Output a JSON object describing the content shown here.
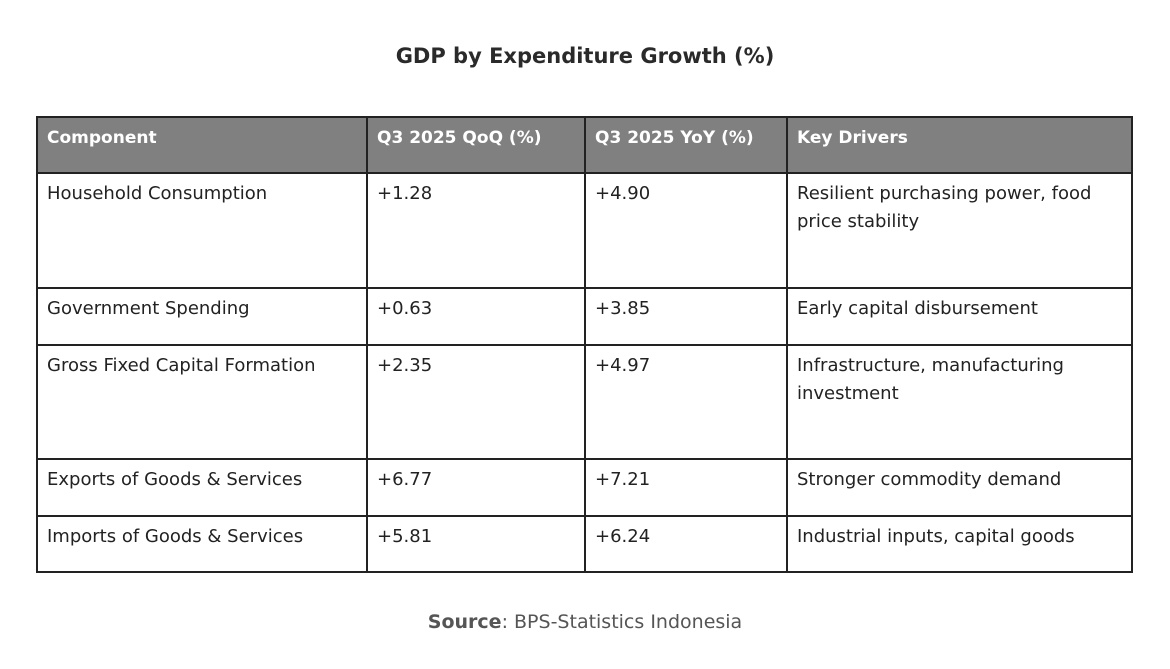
{
  "title": "GDP by Expenditure Growth (%)",
  "source": {
    "label": "Source",
    "text": ": BPS-Statistics Indonesia"
  },
  "chart_data": {
    "type": "table",
    "title": "GDP by Expenditure Growth (%)",
    "columns": [
      "Component",
      "Q3 2025 QoQ (%)",
      "Q3 2025 YoY (%)",
      "Key Drivers"
    ],
    "rows": [
      [
        "Household Consumption",
        "+1.28",
        "+4.90",
        "Resilient purchasing power, food price stability"
      ],
      [
        "Government Spending",
        "+0.63",
        "+3.85",
        "Early capital disbursement"
      ],
      [
        "Gross Fixed Capital Formation",
        "+2.35",
        "+4.97",
        "Infrastructure, manufacturing investment"
      ],
      [
        "Exports of Goods & Services",
        "+6.77",
        "+7.21",
        "Stronger commodity demand"
      ],
      [
        "Imports of Goods & Services",
        "+5.81",
        "+6.24",
        "Industrial inputs, capital goods"
      ]
    ]
  }
}
